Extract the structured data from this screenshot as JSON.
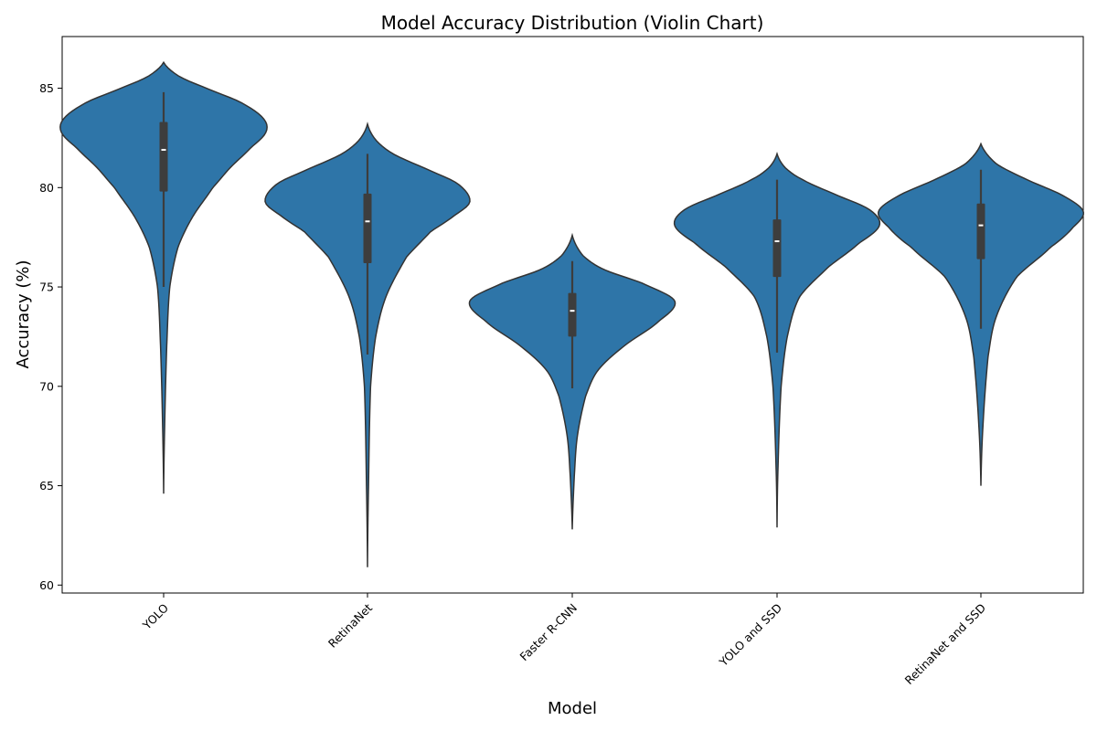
{
  "chart_data": {
    "type": "violin",
    "title": "Model Accuracy Distribution (Violin Chart)",
    "xlabel": "Model",
    "ylabel": "Accuracy (%)",
    "ylim": [
      59.6,
      87.6
    ],
    "yticks": [
      60,
      65,
      70,
      75,
      80,
      85
    ],
    "grid": false,
    "categories": [
      "YOLO",
      "RetinaNet",
      "Faster R-CNN",
      "YOLO and SSD",
      "RetinaNet and SSD"
    ],
    "series": [
      {
        "category": "YOLO",
        "color": "#2e75a8",
        "violin_min": 64.6,
        "violin_max": 86.3,
        "q1": 79.8,
        "median": 81.9,
        "q3": 83.3,
        "whisker_low": 75.0,
        "whisker_high": 84.8,
        "density_profile": [
          [
            64.6,
            0.0
          ],
          [
            68,
            0.01
          ],
          [
            72,
            0.03
          ],
          [
            75,
            0.06
          ],
          [
            77,
            0.14
          ],
          [
            78.5,
            0.28
          ],
          [
            80,
            0.48
          ],
          [
            81,
            0.65
          ],
          [
            82,
            0.85
          ],
          [
            82.8,
            1.0
          ],
          [
            83.5,
            0.97
          ],
          [
            84.3,
            0.75
          ],
          [
            85.0,
            0.42
          ],
          [
            85.6,
            0.15
          ],
          [
            86.3,
            0.0
          ]
        ]
      },
      {
        "category": "RetinaNet",
        "color": "#2e75a8",
        "violin_min": 60.9,
        "violin_max": 83.2,
        "q1": 76.2,
        "median": 78.3,
        "q3": 79.7,
        "whisker_low": 71.6,
        "whisker_high": 81.7,
        "density_profile": [
          [
            60.9,
            0.0
          ],
          [
            65,
            0.01
          ],
          [
            70,
            0.03
          ],
          [
            72.5,
            0.08
          ],
          [
            74.5,
            0.18
          ],
          [
            76.5,
            0.38
          ],
          [
            77.8,
            0.62
          ],
          [
            78.6,
            0.85
          ],
          [
            79.3,
            1.0
          ],
          [
            80.2,
            0.88
          ],
          [
            81.0,
            0.55
          ],
          [
            81.7,
            0.25
          ],
          [
            82.4,
            0.08
          ],
          [
            83.2,
            0.0
          ]
        ]
      },
      {
        "category": "Faster R-CNN",
        "color": "#2e75a8",
        "violin_min": 62.8,
        "violin_max": 77.6,
        "q1": 72.5,
        "median": 73.8,
        "q3": 74.7,
        "whisker_low": 69.9,
        "whisker_high": 76.3,
        "density_profile": [
          [
            62.8,
            0.0
          ],
          [
            65.5,
            0.02
          ],
          [
            67.5,
            0.05
          ],
          [
            69.5,
            0.13
          ],
          [
            70.8,
            0.25
          ],
          [
            72.0,
            0.5
          ],
          [
            73.3,
            0.85
          ],
          [
            74.3,
            1.0
          ],
          [
            75.2,
            0.68
          ],
          [
            75.9,
            0.3
          ],
          [
            76.6,
            0.1
          ],
          [
            77.6,
            0.0
          ]
        ]
      },
      {
        "category": "YOLO and SSD",
        "color": "#2e75a8",
        "violin_min": 62.9,
        "violin_max": 81.7,
        "q1": 75.5,
        "median": 77.3,
        "q3": 78.4,
        "whisker_low": 71.7,
        "whisker_high": 80.4,
        "density_profile": [
          [
            62.9,
            0.0
          ],
          [
            66,
            0.01
          ],
          [
            70,
            0.04
          ],
          [
            72.5,
            0.1
          ],
          [
            74.5,
            0.22
          ],
          [
            76.0,
            0.5
          ],
          [
            77.2,
            0.8
          ],
          [
            78.1,
            1.0
          ],
          [
            78.9,
            0.9
          ],
          [
            79.7,
            0.55
          ],
          [
            80.4,
            0.25
          ],
          [
            81.0,
            0.08
          ],
          [
            81.7,
            0.0
          ]
        ]
      },
      {
        "category": "RetinaNet and SSD",
        "color": "#2e75a8",
        "violin_min": 65.0,
        "violin_max": 82.2,
        "q1": 76.4,
        "median": 78.1,
        "q3": 79.2,
        "whisker_low": 72.9,
        "whisker_high": 80.9,
        "density_profile": [
          [
            65.0,
            0.0
          ],
          [
            68,
            0.02
          ],
          [
            71.5,
            0.07
          ],
          [
            73.5,
            0.15
          ],
          [
            75.5,
            0.35
          ],
          [
            77.0,
            0.68
          ],
          [
            78.0,
            0.9
          ],
          [
            78.8,
            1.0
          ],
          [
            79.6,
            0.8
          ],
          [
            80.4,
            0.45
          ],
          [
            81.2,
            0.15
          ],
          [
            82.2,
            0.0
          ]
        ]
      }
    ]
  }
}
